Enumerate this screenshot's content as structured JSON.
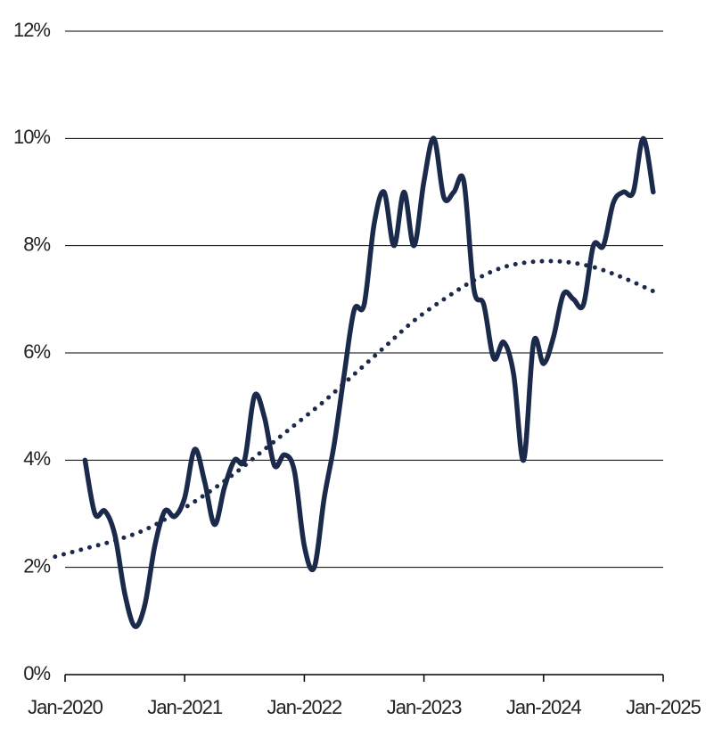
{
  "chart_data": {
    "type": "line",
    "series": [
      {
        "color": "#1b2a4a",
        "style": "solid",
        "x": [
          "2020-03",
          "2020-04",
          "2020-05",
          "2020-06",
          "2020-07",
          "2020-08",
          "2020-09",
          "2020-10",
          "2020-11",
          "2020-12",
          "2021-01",
          "2021-02",
          "2021-03",
          "2021-04",
          "2021-05",
          "2021-06",
          "2021-07",
          "2021-08",
          "2021-09",
          "2021-10",
          "2021-11",
          "2021-12",
          "2022-01",
          "2022-02",
          "2022-03",
          "2022-04",
          "2022-05",
          "2022-06",
          "2022-07",
          "2022-08",
          "2022-09",
          "2022-10",
          "2022-11",
          "2022-12",
          "2023-01",
          "2023-02",
          "2023-03",
          "2023-04",
          "2023-05",
          "2023-06",
          "2023-07",
          "2023-08",
          "2023-09",
          "2023-10",
          "2023-11",
          "2023-12",
          "2024-01",
          "2024-02",
          "2024-03",
          "2024-04",
          "2024-05",
          "2024-06",
          "2024-07",
          "2024-08",
          "2024-09",
          "2024-10",
          "2024-11",
          "2024-12"
        ],
        "values": [
          4.0,
          3.0,
          3.05,
          2.6,
          1.5,
          0.9,
          1.3,
          2.4,
          3.05,
          2.95,
          3.3,
          4.2,
          3.6,
          2.8,
          3.5,
          4.0,
          4.0,
          5.2,
          4.8,
          3.9,
          4.1,
          3.8,
          2.4,
          2.0,
          3.3,
          4.3,
          5.6,
          6.8,
          6.9,
          8.4,
          9.0,
          8.0,
          9.0,
          8.0,
          9.2,
          10.0,
          8.9,
          9.0,
          9.2,
          7.2,
          6.9,
          5.9,
          6.2,
          5.6,
          4.0,
          6.2,
          5.8,
          6.3,
          7.1,
          7.0,
          6.9,
          8.0,
          8.0,
          8.8,
          9.0,
          9.0,
          10.0,
          9.0
        ]
      },
      {
        "color": "#1b2a4a",
        "style": "dotted",
        "x": [
          "2019-12",
          "2020-03",
          "2020-06",
          "2020-09",
          "2020-12",
          "2021-03",
          "2021-06",
          "2021-09",
          "2021-12",
          "2022-03",
          "2022-06",
          "2022-09",
          "2022-12",
          "2023-03",
          "2023-06",
          "2023-09",
          "2023-12",
          "2024-03",
          "2024-06",
          "2024-09",
          "2024-12"
        ],
        "values": [
          2.2,
          2.35,
          2.5,
          2.7,
          3.0,
          3.35,
          3.75,
          4.2,
          4.65,
          5.1,
          5.6,
          6.1,
          6.6,
          7.0,
          7.35,
          7.6,
          7.7,
          7.7,
          7.6,
          7.4,
          7.15
        ]
      }
    ],
    "xlim": [
      "2020-01",
      "2025-01"
    ],
    "xticks": [
      {
        "value": "2020-01",
        "label": "Jan-2020"
      },
      {
        "value": "2021-01",
        "label": "Jan-2021"
      },
      {
        "value": "2022-01",
        "label": "Jan-2022"
      },
      {
        "value": "2023-01",
        "label": "Jan-2023"
      },
      {
        "value": "2024-01",
        "label": "Jan-2024"
      },
      {
        "value": "2025-01",
        "label": "Jan-2025"
      }
    ],
    "ylim": [
      0,
      12
    ],
    "yticks": [
      {
        "value": 0,
        "label": "0%"
      },
      {
        "value": 2,
        "label": "2%"
      },
      {
        "value": 4,
        "label": "4%"
      },
      {
        "value": 6,
        "label": "6%"
      },
      {
        "value": 8,
        "label": "8%"
      },
      {
        "value": 10,
        "label": "10%"
      },
      {
        "value": 12,
        "label": "12%"
      }
    ],
    "grid": true
  }
}
